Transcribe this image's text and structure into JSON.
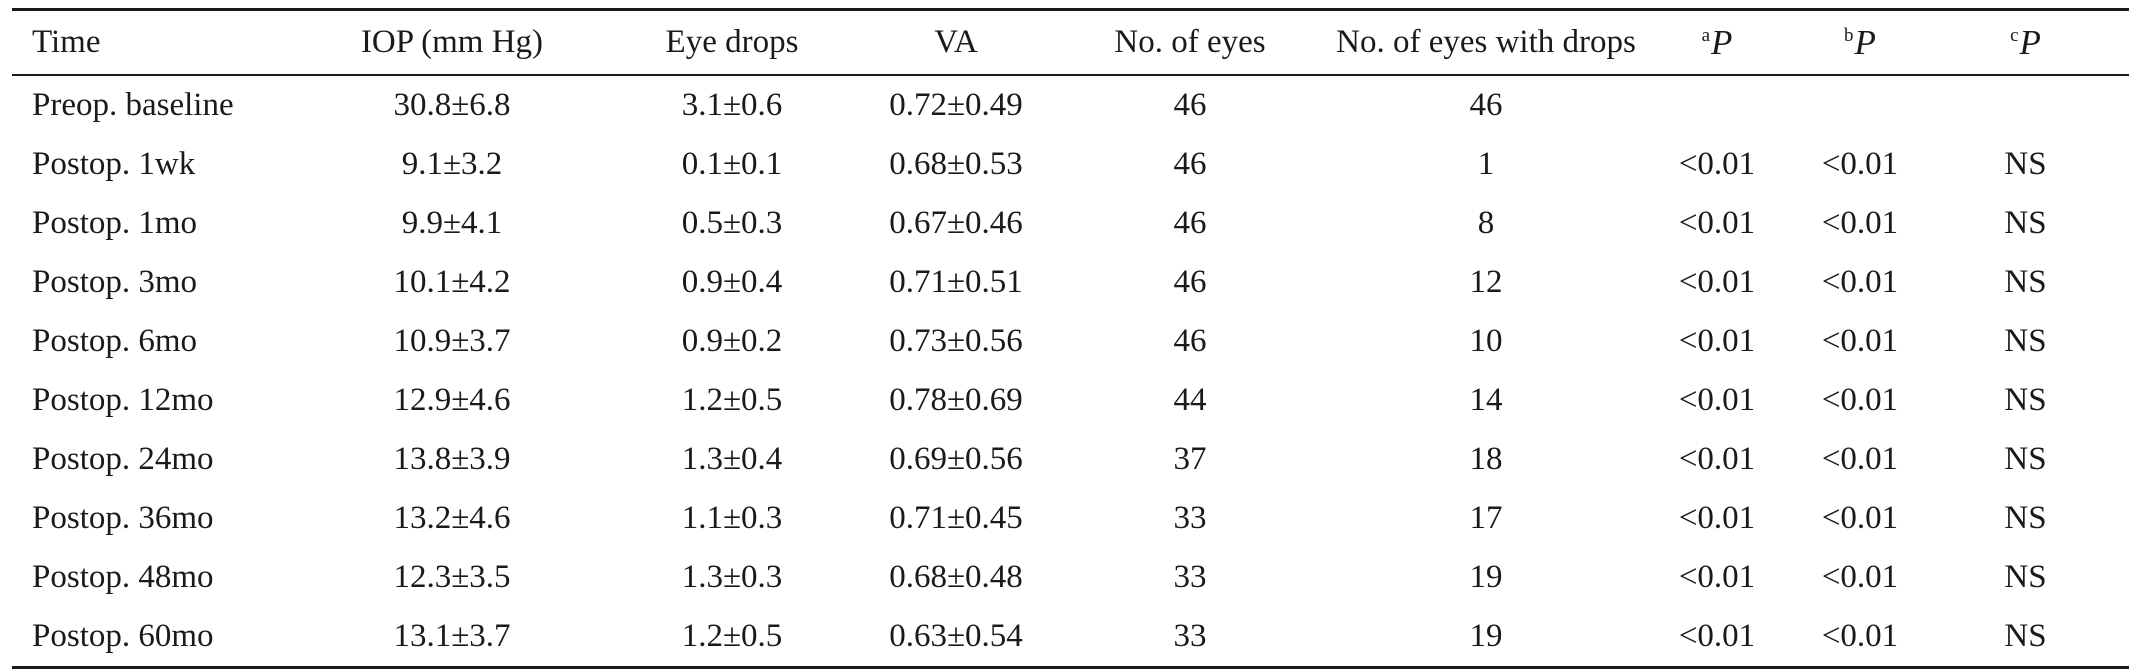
{
  "table": {
    "headers": {
      "time": "Time",
      "iop": "IOP (mm Hg)",
      "eye_drops": "Eye drops",
      "va": "VA",
      "no_eyes": "No. of eyes",
      "no_eyes_drops": "No. of eyes with drops",
      "p_a": {
        "sup": "a",
        "letter": "P"
      },
      "p_b": {
        "sup": "b",
        "letter": "P"
      },
      "p_c": {
        "sup": "c",
        "letter": "P"
      }
    },
    "rows": [
      [
        "Preop. baseline",
        "30.8±6.8",
        "3.1±0.6",
        "0.72±0.49",
        "46",
        "46",
        "",
        "",
        ""
      ],
      [
        "Postop. 1wk",
        "9.1±3.2",
        "0.1±0.1",
        "0.68±0.53",
        "46",
        "1",
        "<0.01",
        "<0.01",
        "NS"
      ],
      [
        "Postop. 1mo",
        "9.9±4.1",
        "0.5±0.3",
        "0.67±0.46",
        "46",
        "8",
        "<0.01",
        "<0.01",
        "NS"
      ],
      [
        "Postop. 3mo",
        "10.1±4.2",
        "0.9±0.4",
        "0.71±0.51",
        "46",
        "12",
        "<0.01",
        "<0.01",
        "NS"
      ],
      [
        "Postop. 6mo",
        "10.9±3.7",
        "0.9±0.2",
        "0.73±0.56",
        "46",
        "10",
        "<0.01",
        "<0.01",
        "NS"
      ],
      [
        "Postop. 12mo",
        "12.9±4.6",
        "1.2±0.5",
        "0.78±0.69",
        "44",
        "14",
        "<0.01",
        "<0.01",
        "NS"
      ],
      [
        "Postop. 24mo",
        "13.8±3.9",
        "1.3±0.4",
        "0.69±0.56",
        "37",
        "18",
        "<0.01",
        "<0.01",
        "NS"
      ],
      [
        "Postop. 36mo",
        "13.2±4.6",
        "1.1±0.3",
        "0.71±0.45",
        "33",
        "17",
        "<0.01",
        "<0.01",
        "NS"
      ],
      [
        "Postop. 48mo",
        "12.3±3.5",
        "1.3±0.3",
        "0.68±0.48",
        "33",
        "19",
        "<0.01",
        "<0.01",
        "NS"
      ],
      [
        "Postop. 60mo",
        "13.1±3.7",
        "1.2±0.5",
        "0.63±0.54",
        "33",
        "19",
        "<0.01",
        "<0.01",
        "NS"
      ]
    ]
  }
}
